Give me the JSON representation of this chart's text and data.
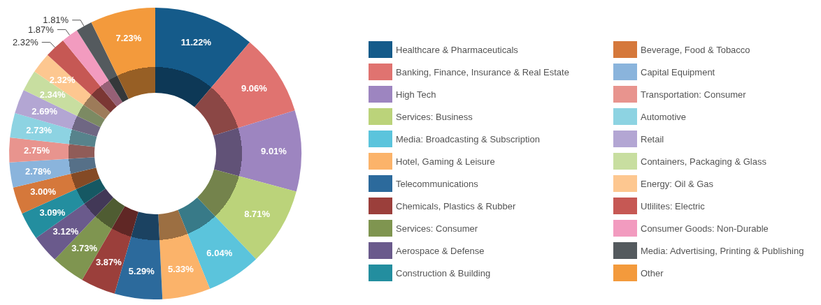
{
  "chart_data": {
    "type": "donut",
    "categories": [
      "Healthcare & Pharmaceuticals",
      "Banking, Finance, Insurance & Real Estate",
      "High Tech",
      "Services: Business",
      "Media: Broadcasting & Subscription",
      "Hotel, Gaming & Leisure",
      "Telecommunications",
      "Chemicals, Plastics & Rubber",
      "Services: Consumer",
      "Aerospace & Defense",
      "Construction & Building",
      "Beverage, Food & Tobacco",
      "Capital Equipment",
      "Transportation: Consumer",
      "Automotive",
      "Retail",
      "Containers, Packaging & Glass",
      "Energy: Oil & Gas",
      "Utlilites: Electric",
      "Consumer Goods: Non-Durable",
      "Media: Advertising, Printing & Publishing",
      "Other"
    ],
    "values": [
      11.22,
      9.06,
      9.01,
      8.71,
      6.04,
      5.33,
      5.29,
      3.87,
      3.73,
      3.12,
      3.09,
      3.0,
      2.78,
      2.75,
      2.73,
      2.69,
      2.34,
      2.32,
      2.32,
      1.87,
      1.81,
      7.23
    ],
    "colors": [
      "#155b8a",
      "#e07370",
      "#9d85c0",
      "#bbd37a",
      "#5bc4dc",
      "#fbb36a",
      "#2c6a9c",
      "#9b3f3b",
      "#7f9550",
      "#6a5a8c",
      "#238e9f",
      "#d5783b",
      "#8ab4dc",
      "#e8948e",
      "#8dd3e2",
      "#b3a6d3",
      "#c8dea0",
      "#fdc790",
      "#c65854",
      "#f29bbf",
      "#545a5e",
      "#f39a3c"
    ],
    "value_labels": [
      "11.22%",
      "9.06%",
      "9.01%",
      "8.71%",
      "6.04%",
      "5.33%",
      "5.29%",
      "3.87%",
      "3.73%",
      "3.12%",
      "3.09%",
      "3.00%",
      "2.78%",
      "2.75%",
      "2.73%",
      "2.69%",
      "2.34%",
      "2.32%",
      "2.32%",
      "1.87%",
      "1.81%",
      "7.23%"
    ],
    "legend": "right"
  }
}
